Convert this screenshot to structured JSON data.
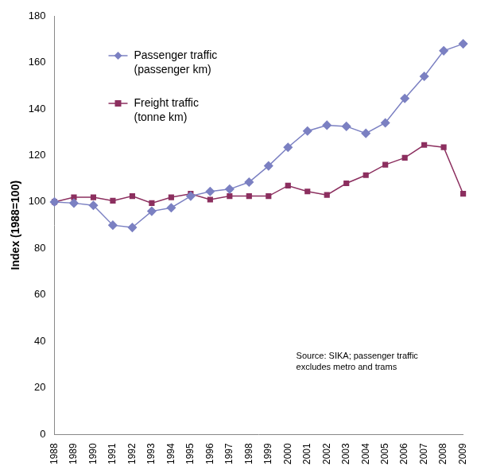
{
  "chart_data": {
    "type": "line",
    "y_label": "Index (1988=100)",
    "categories": [
      "1988",
      "1989",
      "1990",
      "1991",
      "1992",
      "1993",
      "1994",
      "1995",
      "1996",
      "1997",
      "1998",
      "1999",
      "2000",
      "2001",
      "2002",
      "2003",
      "2004",
      "2005",
      "2006",
      "2007",
      "2008",
      "2009"
    ],
    "series": [
      {
        "name": "Passenger traffic (passenger km)",
        "color": "#7b80c2",
        "marker": "diamond",
        "values": [
          100,
          99.5,
          98.5,
          90,
          89,
          96,
          97.5,
          102.5,
          104.5,
          105.5,
          108.5,
          115.5,
          123.5,
          130.5,
          133,
          132.5,
          129.5,
          134,
          144.5,
          154,
          165,
          168
        ]
      },
      {
        "name": "Freight traffic (tonne km)",
        "color": "#8c2f5f",
        "marker": "square",
        "values": [
          100,
          102,
          102,
          100.5,
          102.5,
          99.5,
          102,
          103.5,
          101,
          102.5,
          102.5,
          102.5,
          107,
          104.5,
          103,
          108,
          111.5,
          116,
          119,
          124.5,
          123.5,
          103.5
        ]
      }
    ],
    "annotation": [
      "Source: SIKA; passenger traffic",
      "excludes metro and trams"
    ],
    "ylim": [
      0,
      180
    ],
    "yticks": [
      0,
      20,
      40,
      60,
      80,
      100,
      120,
      140,
      160,
      180
    ],
    "grid": false,
    "legend": "upper left"
  }
}
